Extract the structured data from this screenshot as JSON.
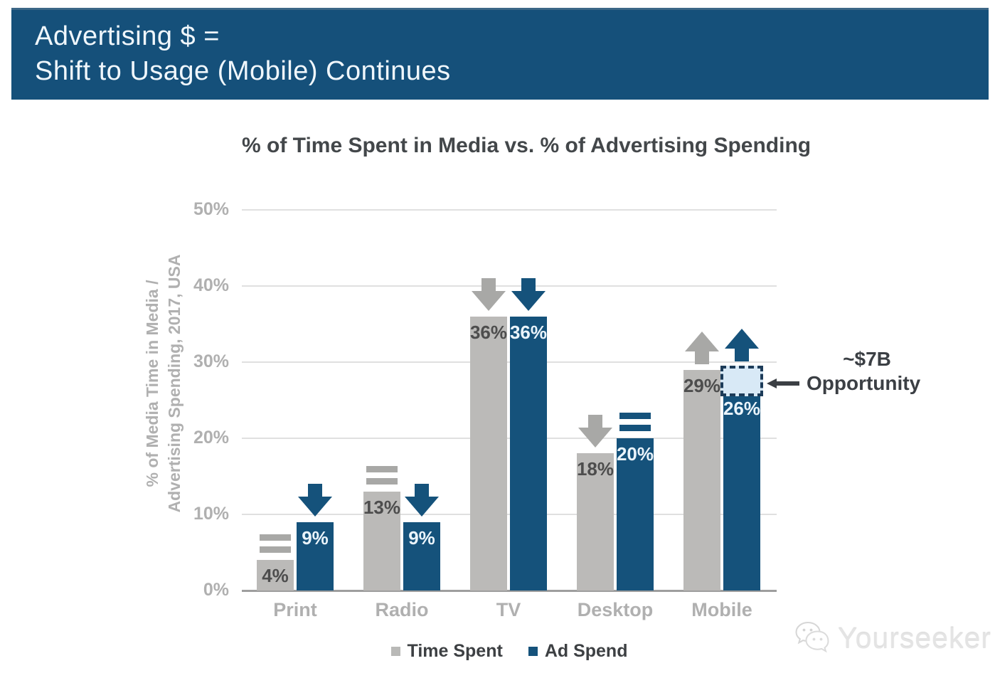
{
  "header": {
    "title_line1": "Advertising $ =",
    "title_line2": "Shift to Usage (Mobile) Continues"
  },
  "chart_data": {
    "type": "bar",
    "title": "% of Time Spent in Media vs. % of Advertising Spending",
    "ylabel_line1": "% of Media Time in Media /",
    "ylabel_line2": "Advertising Spending, 2017, USA",
    "categories": [
      "Print",
      "Radio",
      "TV",
      "Desktop",
      "Mobile"
    ],
    "series": [
      {
        "name": "Time Spent",
        "color": "#bbbab8",
        "trend_color": "#a8a8a6",
        "label_color": "#4d4d4d",
        "values": [
          4,
          13,
          36,
          18,
          29
        ],
        "value_labels": [
          "4%",
          "13%",
          "36%",
          "18%",
          "29%"
        ],
        "trends": [
          "equal",
          "equal",
          "down",
          "down",
          "up"
        ]
      },
      {
        "name": "Ad Spend",
        "color": "#15527b",
        "trend_color": "#15527b",
        "label_color": "#eaf4fb",
        "values": [
          9,
          9,
          36,
          20,
          26
        ],
        "value_labels": [
          "9%",
          "9%",
          "36%",
          "20%",
          "26%"
        ],
        "trends": [
          "down",
          "down",
          "down",
          "equal",
          "up"
        ]
      }
    ],
    "y_ticks": [
      {
        "value": 0,
        "label": "0%"
      },
      {
        "value": 10,
        "label": "10%"
      },
      {
        "value": 20,
        "label": "20%"
      },
      {
        "value": 30,
        "label": "30%"
      },
      {
        "value": 40,
        "label": "40%"
      },
      {
        "value": 50,
        "label": "50%"
      }
    ],
    "ylim": [
      0,
      50
    ],
    "grid": true,
    "legend_position": "bottom",
    "opportunity_box": {
      "category": "Mobile",
      "series": "Ad Spend",
      "value_from": 26,
      "value_to": 29.3,
      "fill": "#d8e9f6",
      "border": "#1d3c59"
    }
  },
  "annotation": {
    "line1": "~$7B",
    "line2": "Opportunity",
    "color": "#3b3f44"
  },
  "legend": {
    "items": [
      {
        "label": "Time Spent",
        "color": "#b9b9b7"
      },
      {
        "label": "Ad Spend",
        "color": "#15527b"
      }
    ]
  },
  "watermark": {
    "text": "Yourseeker"
  }
}
